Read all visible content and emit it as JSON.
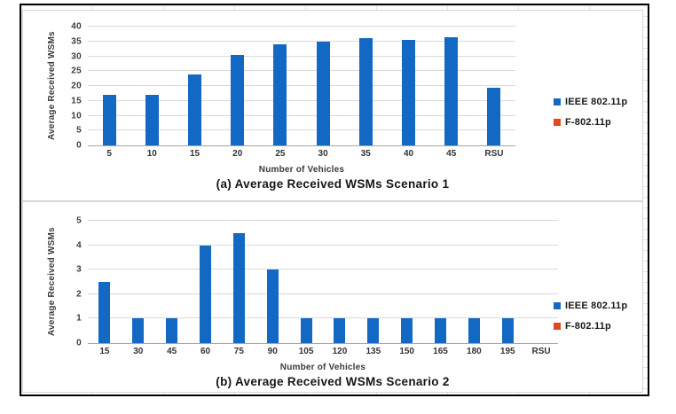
{
  "window": {
    "background": "#ffffff",
    "frame_border_color": "#000000"
  },
  "colors": {
    "bar_blue": "#1268c3",
    "accent_orange": "#e1491c",
    "gridline": "#d9d9d9",
    "axis_line": "#a6a6a6",
    "tick_text": "#3b3b3b",
    "caption_text": "#161616"
  },
  "chart_data": [
    {
      "type": "bar",
      "title": "(a) Average Received WSMs Scenario 1",
      "xlabel": "Number of Vehicles",
      "ylabel": "Average Received WSMs",
      "categories": [
        "5",
        "10",
        "15",
        "20",
        "25",
        "30",
        "35",
        "40",
        "45",
        "RSU"
      ],
      "series": [
        {
          "name": "IEEE 802.11p",
          "color": "#1268c3",
          "values": [
            17,
            17,
            24,
            30.5,
            34,
            35,
            36,
            35.5,
            36.5,
            19.5
          ]
        },
        {
          "name": "F-802.11p",
          "color": "#e1491c",
          "values": [
            0,
            0,
            0,
            0,
            0,
            0,
            0,
            0,
            0,
            0
          ]
        }
      ],
      "ylim": [
        0,
        40
      ],
      "ytick_step": 5,
      "grid": true,
      "legend_position": "right"
    },
    {
      "type": "bar",
      "title": "(b) Average Received WSMs Scenario 2",
      "xlabel": "Number of Vehicles",
      "ylabel": "Average Received WSMs",
      "categories": [
        "15",
        "30",
        "45",
        "60",
        "75",
        "90",
        "105",
        "120",
        "135",
        "150",
        "165",
        "180",
        "195",
        "RSU"
      ],
      "series": [
        {
          "name": "IEEE 802.11p",
          "color": "#1268c3",
          "values": [
            2.5,
            1,
            1,
            4,
            4.5,
            3,
            1,
            1,
            1,
            1,
            1,
            1,
            1,
            0
          ]
        },
        {
          "name": "F-802.11p",
          "color": "#e1491c",
          "values": [
            0,
            0,
            0,
            0,
            0,
            0,
            0,
            0,
            0,
            0,
            0,
            0,
            0,
            0
          ]
        }
      ],
      "ylim": [
        0,
        5
      ],
      "ytick_step": 1,
      "grid": true,
      "legend_position": "right"
    }
  ]
}
